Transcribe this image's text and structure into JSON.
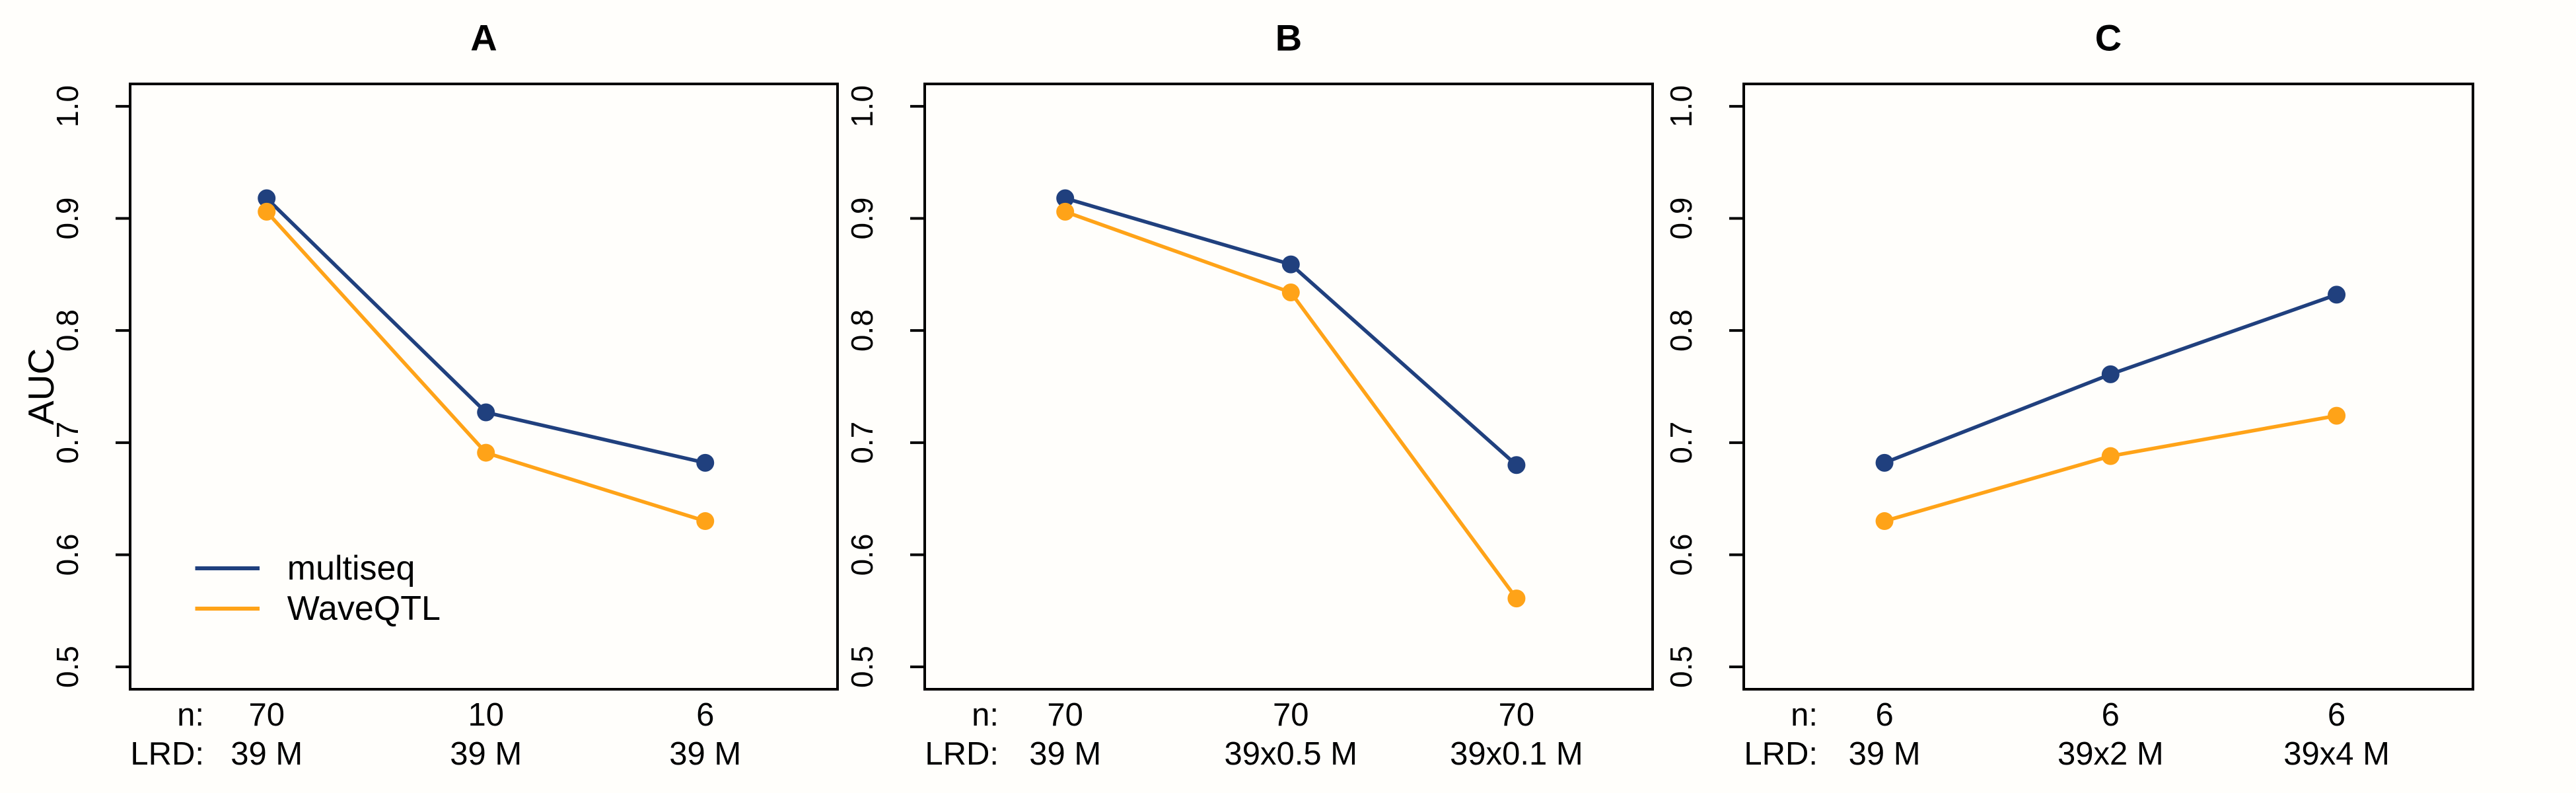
{
  "figure": {
    "ylabel": "AUC",
    "background": "#fffefb",
    "text_color": "#000000",
    "row_labels": {
      "n": "n:",
      "lrd": "LRD:"
    },
    "legend": {
      "position": "inside-panel-A-bottom-left",
      "items": [
        {
          "label": "multiseq",
          "color": "#20407E"
        },
        {
          "label": "WaveQTL",
          "color": "#FFA318"
        }
      ]
    }
  },
  "chart_data": [
    {
      "type": "line",
      "panel_title": "A",
      "ylabel": "AUC",
      "ylim": [
        0.5,
        1.0
      ],
      "yticks": [
        "0.5",
        "0.6",
        "0.7",
        "0.8",
        "0.9",
        "1.0"
      ],
      "grid": false,
      "x_rows": {
        "n": [
          "70",
          "10",
          "6"
        ],
        "LRD": [
          "39 M",
          "39 M",
          "39 M"
        ]
      },
      "series": [
        {
          "name": "multiseq",
          "color": "#20407E",
          "values": [
            0.918,
            0.727,
            0.682
          ]
        },
        {
          "name": "WaveQTL",
          "color": "#FFA318",
          "values": [
            0.906,
            0.691,
            0.63
          ]
        }
      ]
    },
    {
      "type": "line",
      "panel_title": "B",
      "ylim": [
        0.5,
        1.0
      ],
      "yticks": [
        "0.5",
        "0.6",
        "0.7",
        "0.8",
        "0.9",
        "1.0"
      ],
      "grid": false,
      "x_rows": {
        "n": [
          "70",
          "70",
          "70"
        ],
        "LRD": [
          "39 M",
          "39x0.5 M",
          "39x0.1 M"
        ]
      },
      "series": [
        {
          "name": "multiseq",
          "color": "#20407E",
          "values": [
            0.918,
            0.859,
            0.68
          ]
        },
        {
          "name": "WaveQTL",
          "color": "#FFA318",
          "values": [
            0.906,
            0.834,
            0.561
          ]
        }
      ]
    },
    {
      "type": "line",
      "panel_title": "C",
      "ylim": [
        0.5,
        1.0
      ],
      "yticks": [
        "0.5",
        "0.6",
        "0.7",
        "0.8",
        "0.9",
        "1.0"
      ],
      "grid": false,
      "x_rows": {
        "n": [
          "6",
          "6",
          "6"
        ],
        "LRD": [
          "39 M",
          "39x2 M",
          "39x4 M"
        ]
      },
      "series": [
        {
          "name": "multiseq",
          "color": "#20407E",
          "values": [
            0.682,
            0.761,
            0.832
          ]
        },
        {
          "name": "WaveQTL",
          "color": "#FFA318",
          "values": [
            0.63,
            0.688,
            0.724
          ]
        }
      ]
    }
  ]
}
